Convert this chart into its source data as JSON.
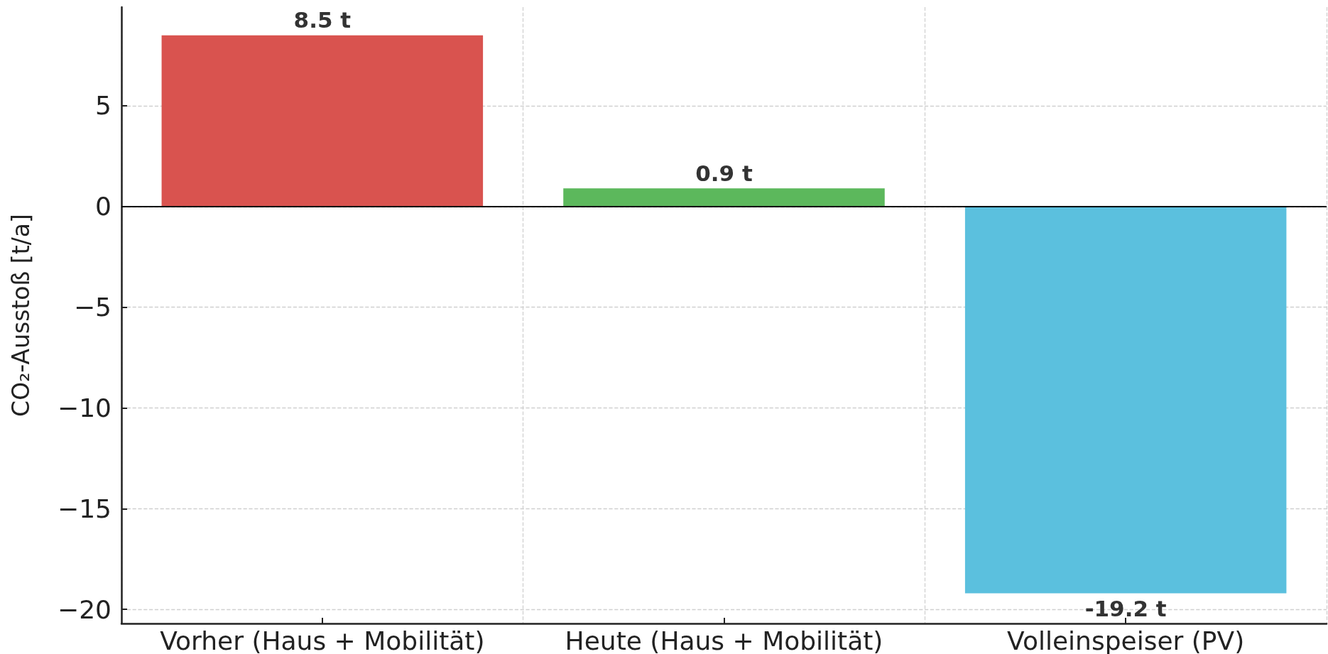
{
  "chart_data": {
    "type": "bar",
    "ylabel": "CO₂-Ausstoß [t/a]",
    "categories": [
      "Vorher (Haus + Mobilität)",
      "Heute (Haus + Mobilität)",
      "Volleinspeiser (PV)"
    ],
    "values": [
      8.5,
      0.9,
      -19.2
    ],
    "colors": [
      "#d9534f",
      "#5cb85c",
      "#5bc0de"
    ],
    "value_labels": [
      "8.5 t",
      "0.9 t",
      "-19.2 t"
    ],
    "ylim": [
      -20.7,
      9.9
    ],
    "yticks": [
      -20,
      -15,
      -10,
      -5,
      0,
      5
    ],
    "ref_lines": [
      {
        "axis": "y",
        "value": 0,
        "color": "#000000",
        "line_style": "solid"
      }
    ],
    "grid": true
  }
}
